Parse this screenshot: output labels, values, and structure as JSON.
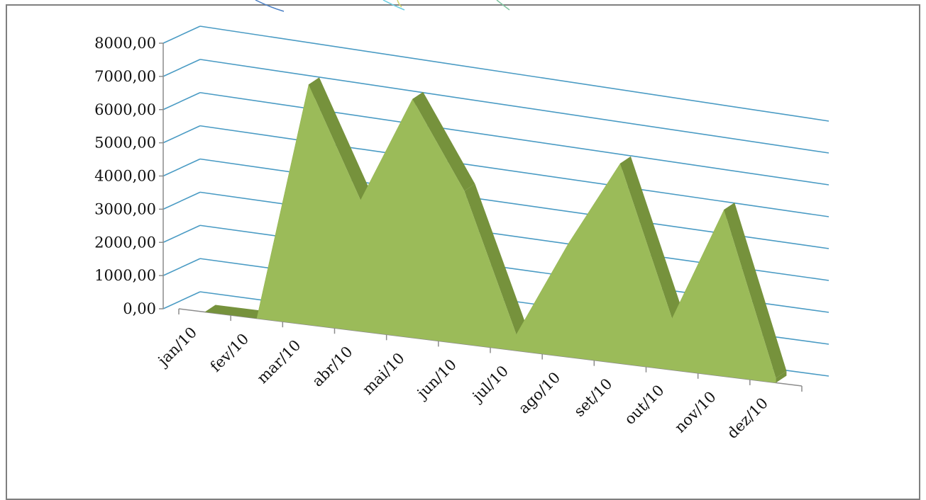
{
  "chart_data": {
    "type": "area",
    "categories": [
      "jan/10",
      "fev/10",
      "mar/10",
      "abr/10",
      "mai/10",
      "jun/10",
      "jul/10",
      "ago/10",
      "set/10",
      "out/10",
      "nov/10",
      "dez/10"
    ],
    "series": [
      {
        "values": [
          0,
          0,
          7300,
          4000,
          7300,
          4700,
          500,
          3500,
          6200,
          1600,
          5200,
          150
        ]
      }
    ],
    "yticks": [
      "0,00",
      "1000,00",
      "2000,00",
      "3000,00",
      "4000,00",
      "5000,00",
      "6000,00",
      "7000,00",
      "8000,00"
    ],
    "ylim": [
      0,
      8000
    ],
    "grid": true,
    "three_d": true,
    "colors": {
      "area_front": "#9bbb59",
      "area_depth": "#76923c",
      "gridline": "#4a9bc4",
      "axis": "#8c8c8c"
    }
  }
}
